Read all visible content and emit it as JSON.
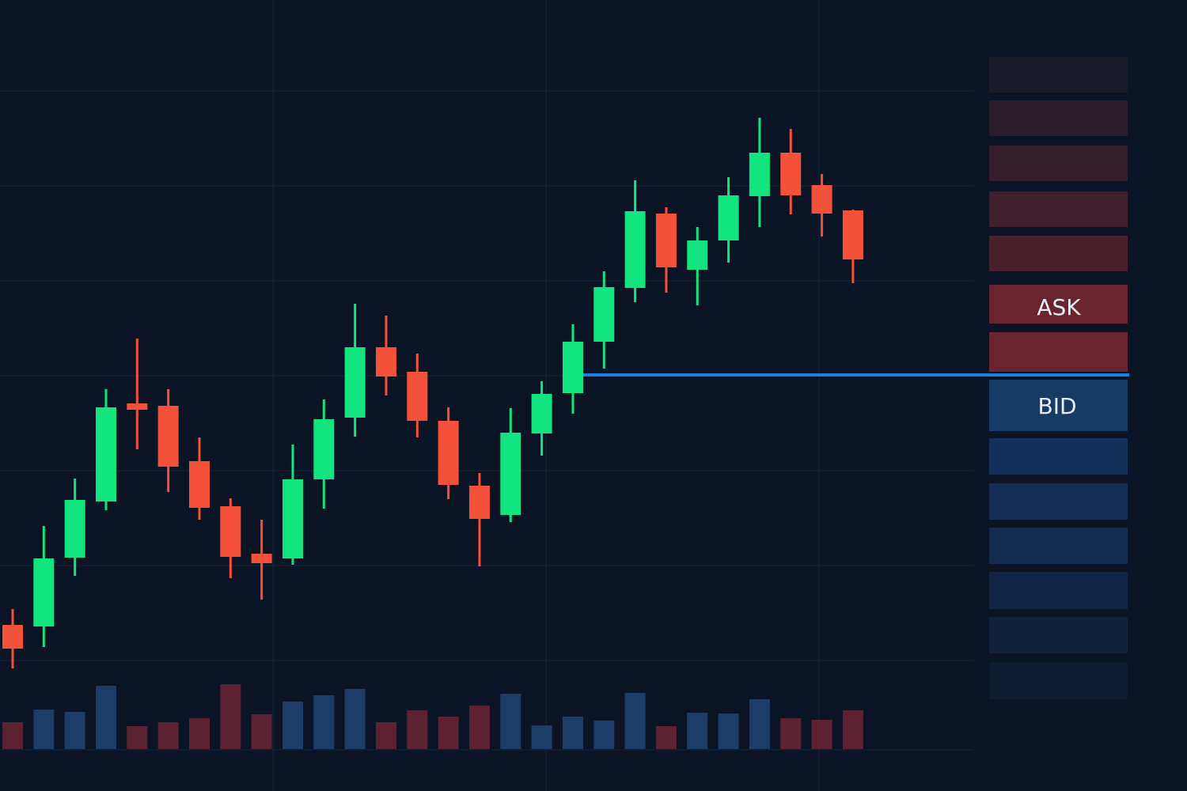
{
  "chart_data": {
    "type": "candlestick",
    "categories": [
      null,
      null,
      null,
      null,
      null,
      null,
      null,
      null,
      null,
      null,
      null,
      null,
      null,
      null,
      null,
      null,
      null,
      null,
      null,
      null,
      null,
      null,
      null,
      null,
      null,
      null,
      null,
      null
    ],
    "open": [
      21,
      20.8,
      29.5,
      36.6,
      49,
      48.7,
      41.7,
      36,
      30,
      29.4,
      39.4,
      47.2,
      56.1,
      53,
      46.8,
      38.6,
      34.9,
      45.2,
      50.3,
      56.8,
      63.6,
      73,
      65.9,
      69.6,
      75.2,
      80.7,
      76.6,
      73.4
    ],
    "high": [
      23,
      33.5,
      39.5,
      50.8,
      57.2,
      50.8,
      44.7,
      37,
      34.3,
      43.8,
      49.5,
      61.6,
      60.1,
      55.3,
      48.5,
      40.2,
      48.4,
      51.8,
      59,
      65.7,
      77.2,
      73.8,
      71.3,
      77.6,
      85.1,
      83.7,
      78,
      73.5
    ],
    "low": [
      15.5,
      18.2,
      27.2,
      35.5,
      43.2,
      37.8,
      34.3,
      26.9,
      24.2,
      28.6,
      35.7,
      44.8,
      50,
      44.7,
      36.9,
      28.4,
      34,
      42.4,
      47.7,
      53.4,
      61.8,
      63,
      61.4,
      66.8,
      71.3,
      72.9,
      70.1,
      64.2
    ],
    "close": [
      18,
      29.4,
      36.8,
      48.5,
      48.2,
      41,
      35.8,
      29.6,
      28.8,
      39.4,
      47,
      56.1,
      52.4,
      46.8,
      38.7,
      34.4,
      45.3,
      50.2,
      56.8,
      63.7,
      73.3,
      66.2,
      69.6,
      75.3,
      80.7,
      75.3,
      73,
      67.2
    ],
    "volume": [
      34,
      50,
      47,
      80,
      29,
      34,
      39,
      82,
      44,
      60,
      68,
      76,
      34,
      49,
      41,
      55,
      70,
      30,
      41,
      36,
      71,
      29,
      46,
      45,
      63,
      39,
      37,
      49
    ],
    "up_color": "#12e57f",
    "down_color": "#f4513b",
    "volume_up_color": "#1d3c68",
    "volume_down_color": "#5c2232",
    "ylim": [
      0,
      100
    ],
    "volume_lim": [
      0,
      100
    ]
  },
  "order_book": {
    "ask": "ASK",
    "bid": "BID"
  }
}
